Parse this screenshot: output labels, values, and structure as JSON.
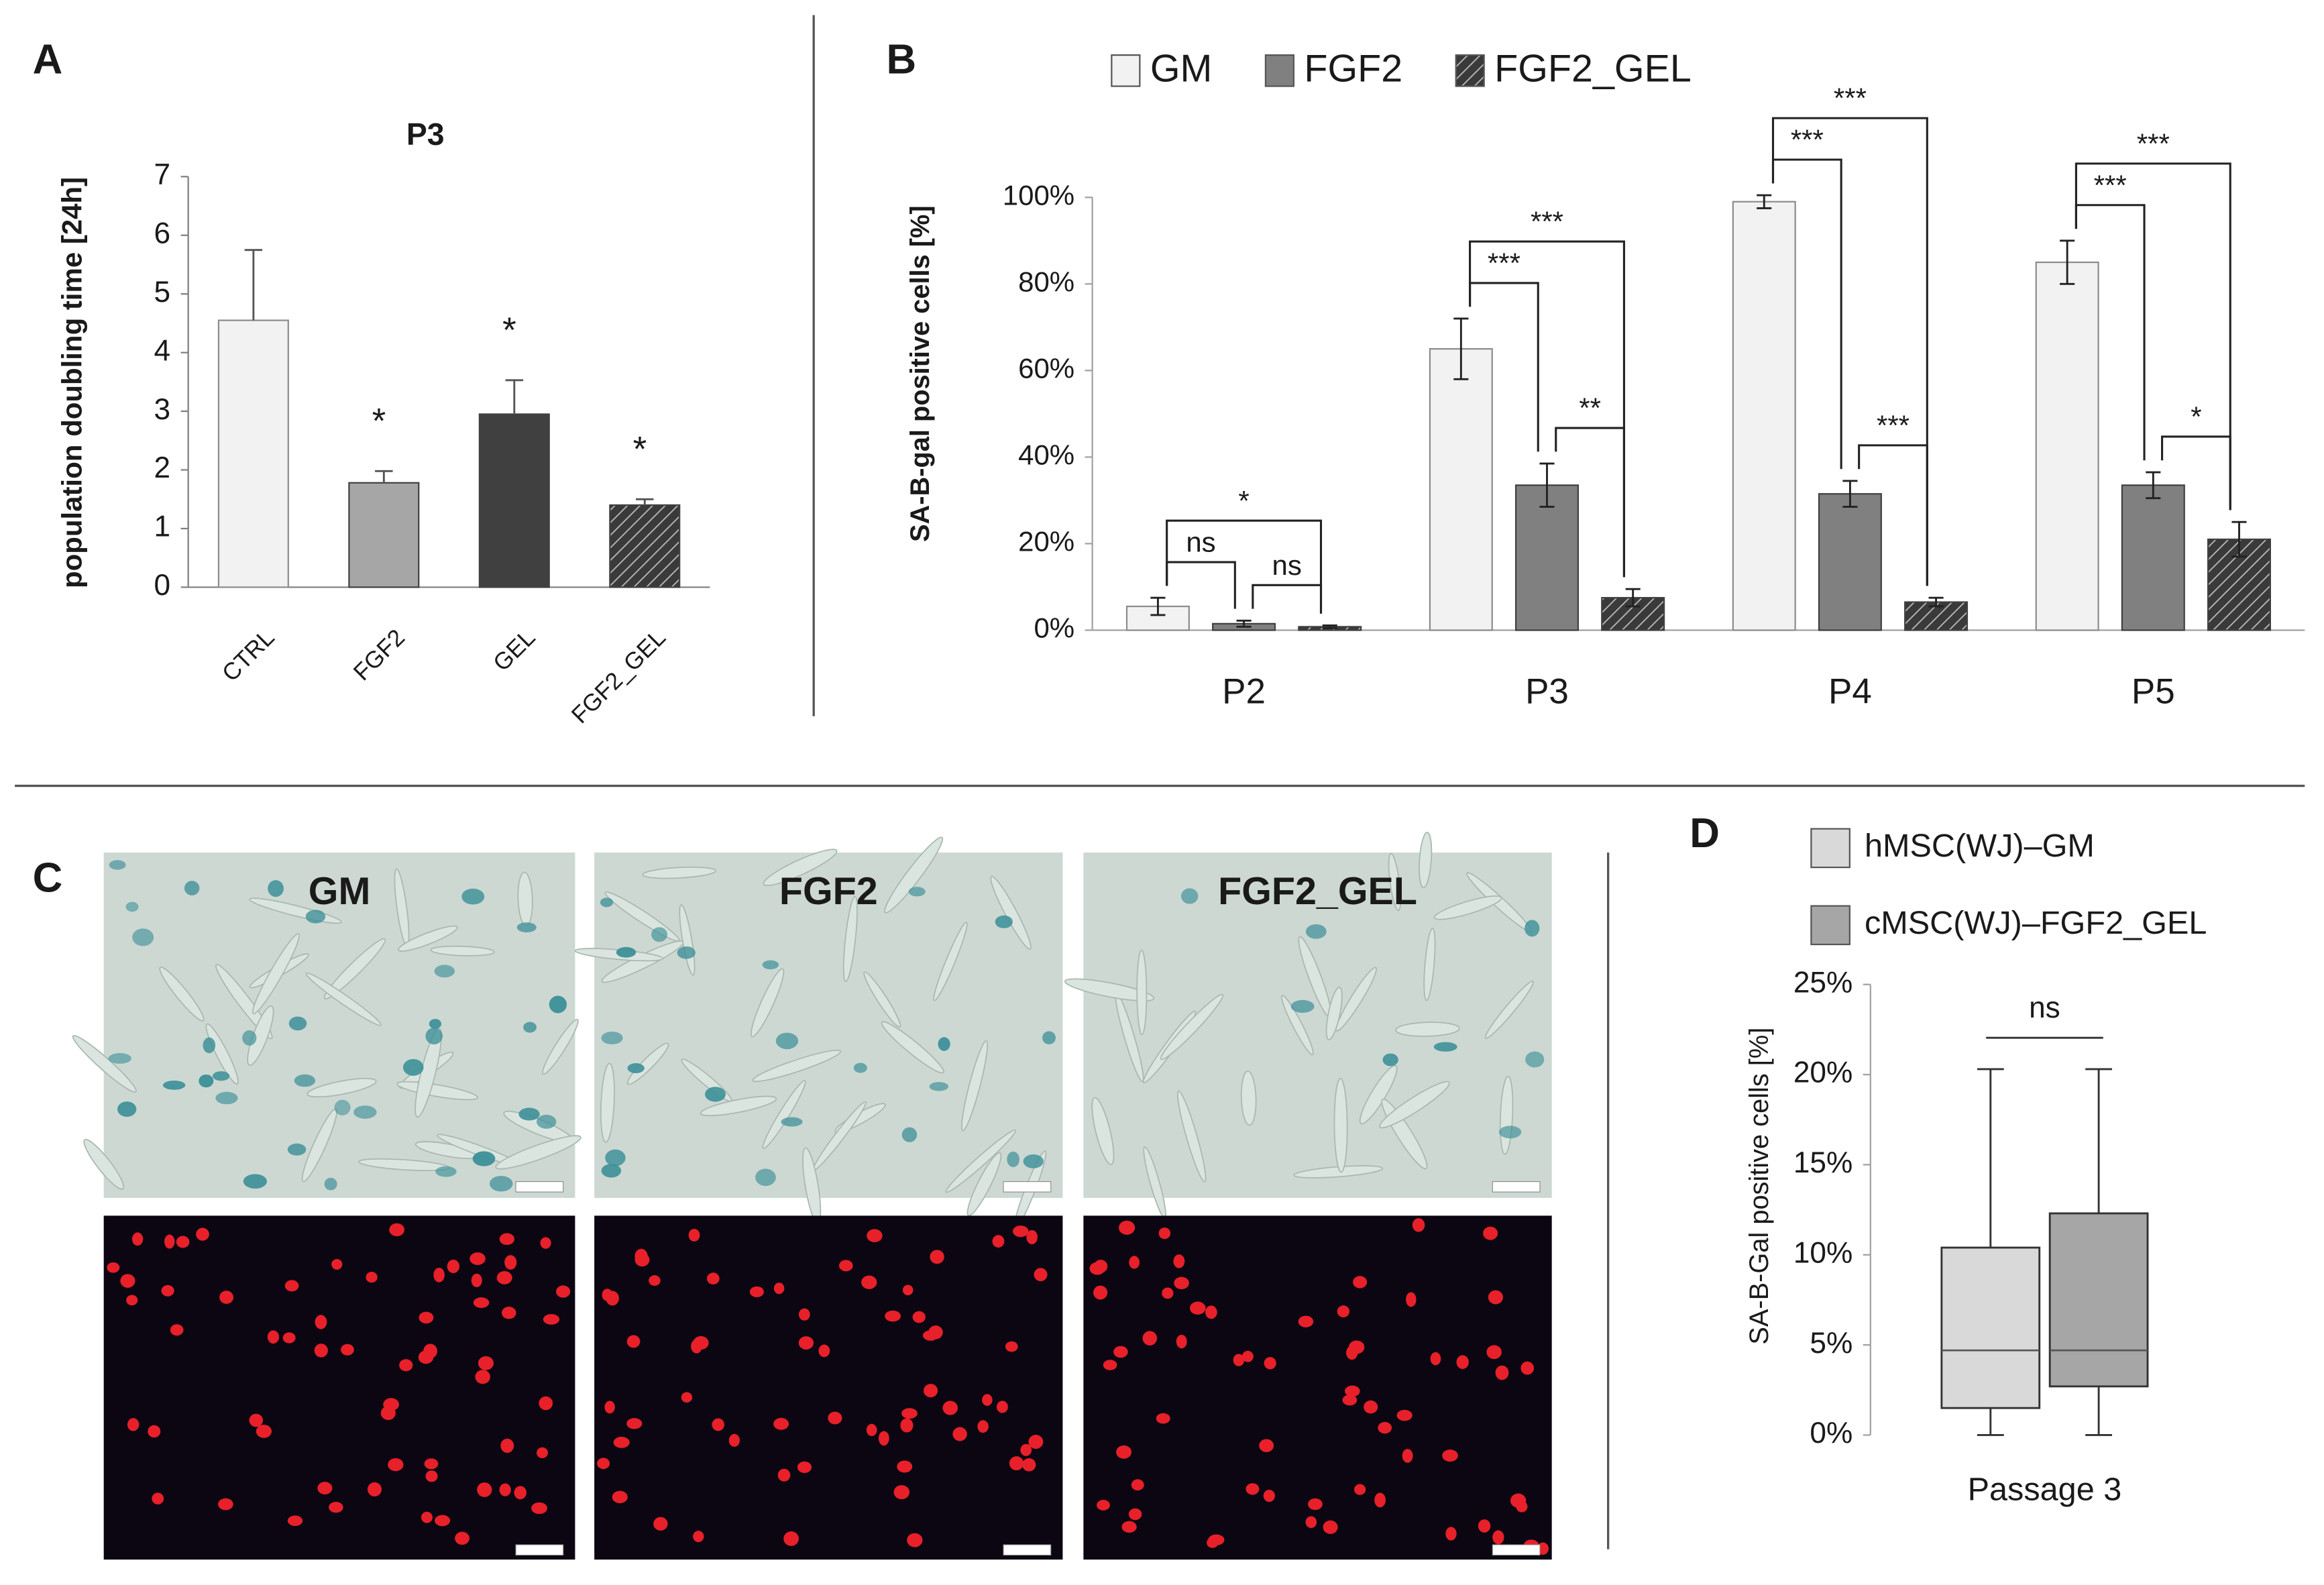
{
  "chart_data": [
    {
      "type": "bar",
      "panel": "A",
      "title": "P3",
      "ylabel": "population doubling time [24h]",
      "categories": [
        "CTRL",
        "FGF2",
        "GEL",
        "FGF2_GEL"
      ],
      "values": [
        4.55,
        1.78,
        2.95,
        1.4
      ],
      "errors": [
        1.2,
        0.2,
        0.58,
        0.1
      ],
      "colors": [
        "#f2f2f2",
        "#a6a6a6",
        "#404040",
        "#404040"
      ],
      "hatch": [
        false,
        false,
        false,
        true
      ],
      "significance": [
        null,
        "*",
        "*",
        "*"
      ],
      "ylim": [
        0,
        7
      ],
      "yticks": [
        0,
        1,
        2,
        3,
        4,
        5,
        6,
        7
      ]
    },
    {
      "type": "bar",
      "panel": "B",
      "ylabel": "SA-B-gal positive cells [%]",
      "categories": [
        "P2",
        "P3",
        "P4",
        "P5"
      ],
      "series": [
        {
          "name": "GM",
          "color": "#f2f2f2",
          "hatch": false,
          "values": [
            5.5,
            65,
            99,
            85
          ],
          "errors": [
            2,
            7,
            1.5,
            5
          ]
        },
        {
          "name": "FGF2",
          "color": "#808080",
          "hatch": false,
          "values": [
            1.5,
            33.5,
            31.5,
            33.5
          ],
          "errors": [
            0.7,
            5,
            3,
            3
          ]
        },
        {
          "name": "FGF2_GEL",
          "color": "#404040",
          "hatch": true,
          "values": [
            0.8,
            7.5,
            6.5,
            21
          ],
          "errors": [
            0.3,
            2,
            1,
            4
          ]
        }
      ],
      "brackets": [
        {
          "category": 0,
          "series": [
            0,
            1
          ],
          "label": "ns"
        },
        {
          "category": 0,
          "series": [
            1,
            2
          ],
          "label": "ns"
        },
        {
          "category": 0,
          "series": [
            0,
            2
          ],
          "label": "*"
        },
        {
          "category": 1,
          "series": [
            0,
            1
          ],
          "label": "***"
        },
        {
          "category": 1,
          "series": [
            1,
            2
          ],
          "label": "**"
        },
        {
          "category": 1,
          "series": [
            0,
            2
          ],
          "label": "***"
        },
        {
          "category": 2,
          "series": [
            0,
            1
          ],
          "label": "***"
        },
        {
          "category": 2,
          "series": [
            1,
            2
          ],
          "label": "***"
        },
        {
          "category": 2,
          "series": [
            0,
            2
          ],
          "label": "***"
        },
        {
          "category": 3,
          "series": [
            0,
            1
          ],
          "label": "***"
        },
        {
          "category": 3,
          "series": [
            1,
            2
          ],
          "label": "*"
        },
        {
          "category": 3,
          "series": [
            0,
            2
          ],
          "label": "***"
        }
      ],
      "legend": "top",
      "ylim": [
        0,
        100
      ],
      "yticks": [
        {
          "value": 0,
          "label": "0%"
        },
        {
          "value": 20,
          "label": "20%"
        },
        {
          "value": 40,
          "label": "40%"
        },
        {
          "value": 60,
          "label": "60%"
        },
        {
          "value": 80,
          "label": "80%"
        },
        {
          "value": 100,
          "label": "100%"
        }
      ]
    },
    {
      "type": "box",
      "panel": "D",
      "ylabel": "SA-B-Gal positive cells [%]",
      "categories": [
        "Passage 3"
      ],
      "series": [
        {
          "name": "hMSC(WJ)–GM",
          "color": "#d9d9d9",
          "min": 0,
          "q1": 1.5,
          "median": 4.7,
          "q3": 10.4,
          "max": 20.3
        },
        {
          "name": "cMSC(WJ)–FGF2_GEL",
          "color": "#a6a6a6",
          "min": 0,
          "q1": 2.7,
          "median": 4.7,
          "q3": 12.3,
          "max": 20.3
        }
      ],
      "annotation": "ns",
      "legend": "top-left",
      "ylim": [
        0,
        25
      ],
      "yticks": [
        {
          "value": 0,
          "label": "0%"
        },
        {
          "value": 5,
          "label": "5%"
        },
        {
          "value": 10,
          "label": "10%"
        },
        {
          "value": 15,
          "label": "15%"
        },
        {
          "value": 20,
          "label": "20%"
        },
        {
          "value": 25,
          "label": "25%"
        }
      ]
    }
  ],
  "micrographs": {
    "panel": "C",
    "labels": [
      "GM",
      "FGF2",
      "FGF2_GEL"
    ]
  }
}
